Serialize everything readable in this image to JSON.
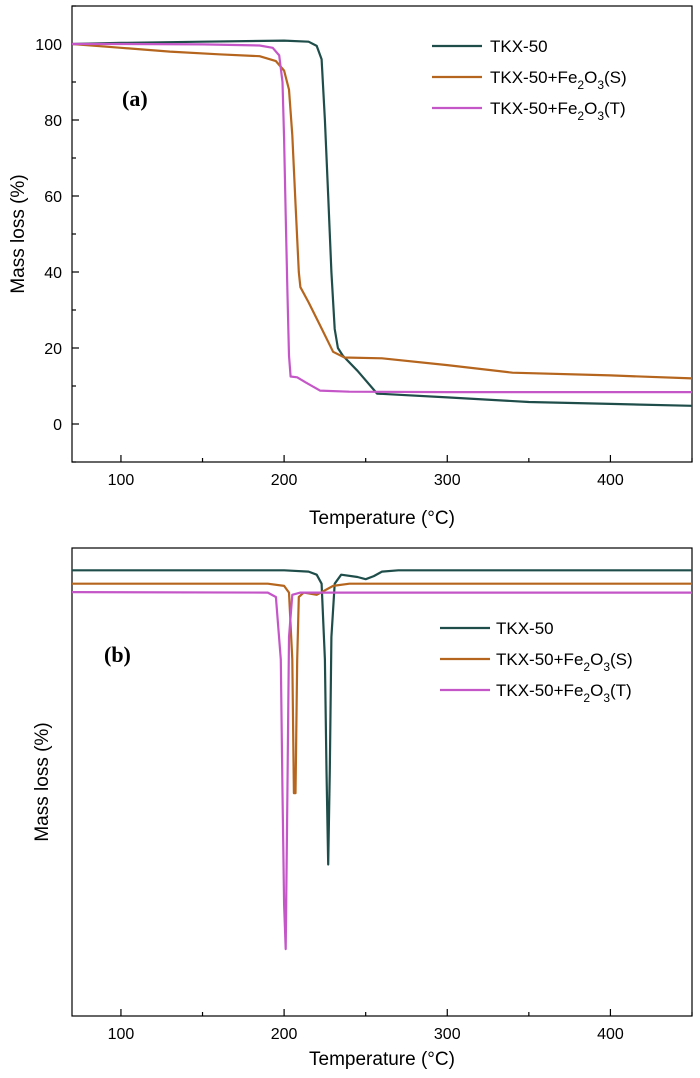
{
  "chart_data": [
    {
      "panel": "(a)",
      "type": "line",
      "xlabel": "Temperature (°C)",
      "ylabel": "Mass loss (%)",
      "xlim": [
        70,
        450
      ],
      "ylim": [
        -10,
        110
      ],
      "xticks": [
        100,
        200,
        300,
        400
      ],
      "xtick_labels": [
        "100",
        "200",
        "300",
        "400"
      ],
      "yticks": [
        0,
        20,
        40,
        60,
        80,
        100
      ],
      "ytick_labels": [
        "0",
        "20",
        "40",
        "60",
        "80",
        "100"
      ],
      "legend_position": "top-right",
      "series": [
        {
          "name": "TKX-50",
          "legend": {
            "base": "TKX-50",
            "sub1": "",
            "mid": "",
            "sub2": "",
            "tail": ""
          },
          "color": "#1f4e4a",
          "points": [
            [
              70,
              100
            ],
            [
              100,
              100.3
            ],
            [
              150,
              100.6
            ],
            [
              200,
              100.9
            ],
            [
              215,
              100.6
            ],
            [
              220,
              99.5
            ],
            [
              223,
              96
            ],
            [
              225,
              80
            ],
            [
              227,
              60
            ],
            [
              229,
              40
            ],
            [
              231,
              25
            ],
            [
              233,
              20
            ],
            [
              236,
              18
            ],
            [
              245,
              14
            ],
            [
              257,
              8
            ],
            [
              300,
              7
            ],
            [
              350,
              5.8
            ],
            [
              400,
              5.3
            ],
            [
              450,
              4.8
            ]
          ]
        },
        {
          "name": "TKX-50+Fe2O3(S)",
          "legend": {
            "base": "TKX-50+Fe",
            "sub1": "2",
            "mid": "O",
            "sub2": "3",
            "tail": "(S)"
          },
          "color": "#b5651d",
          "points": [
            [
              70,
              100
            ],
            [
              100,
              99
            ],
            [
              130,
              98
            ],
            [
              160,
              97.3
            ],
            [
              185,
              96.8
            ],
            [
              195,
              95.5
            ],
            [
              200,
              93
            ],
            [
              203,
              88
            ],
            [
              205,
              76
            ],
            [
              207,
              58
            ],
            [
              209,
              40
            ],
            [
              210,
              36
            ],
            [
              215,
              32
            ],
            [
              222,
              26
            ],
            [
              230,
              19
            ],
            [
              237,
              17.5
            ],
            [
              260,
              17.3
            ],
            [
              300,
              15.5
            ],
            [
              340,
              13.5
            ],
            [
              400,
              12.8
            ],
            [
              450,
              12
            ]
          ]
        },
        {
          "name": "TKX-50+Fe2O3(T)",
          "legend": {
            "base": "TKX-50+Fe",
            "sub1": "2",
            "mid": "O",
            "sub2": "3",
            "tail": "(T)"
          },
          "color": "#c456c8",
          "points": [
            [
              70,
              100
            ],
            [
              100,
              100
            ],
            [
              150,
              99.9
            ],
            [
              185,
              99.6
            ],
            [
              193,
              99
            ],
            [
              197,
              97
            ],
            [
              199,
              90
            ],
            [
              200,
              75
            ],
            [
              201,
              55
            ],
            [
              202,
              35
            ],
            [
              203,
              18
            ],
            [
              204,
              12.5
            ],
            [
              208,
              12.3
            ],
            [
              213,
              11
            ],
            [
              222,
              8.8
            ],
            [
              240,
              8.5
            ],
            [
              300,
              8.4
            ],
            [
              400,
              8.4
            ],
            [
              450,
              8.4
            ]
          ]
        }
      ]
    },
    {
      "panel": "(b)",
      "type": "line",
      "xlabel": "Temperature (°C)",
      "ylabel": "Mass loss (%)",
      "xlim": [
        70,
        450
      ],
      "ylim": [
        -1.0,
        0.05
      ],
      "xticks": [
        100,
        200,
        300,
        400
      ],
      "xtick_labels": [
        "100",
        "200",
        "300",
        "400"
      ],
      "yticks": [],
      "legend_position": "upper-right",
      "series": [
        {
          "name": "TKX-50",
          "legend": {
            "base": "TKX-50",
            "sub1": "",
            "mid": "",
            "sub2": "",
            "tail": ""
          },
          "color": "#1f4e4a",
          "points": [
            [
              70,
              0
            ],
            [
              200,
              0
            ],
            [
              215,
              -0.003
            ],
            [
              220,
              -0.01
            ],
            [
              223,
              -0.03
            ],
            [
              225,
              -0.2
            ],
            [
              226,
              -0.45
            ],
            [
              227,
              -0.66
            ],
            [
              228,
              -0.45
            ],
            [
              229,
              -0.15
            ],
            [
              231,
              -0.03
            ],
            [
              235,
              -0.01
            ],
            [
              245,
              -0.015
            ],
            [
              250,
              -0.02
            ],
            [
              255,
              -0.013
            ],
            [
              260,
              -0.003
            ],
            [
              270,
              0
            ],
            [
              450,
              0
            ]
          ]
        },
        {
          "name": "TKX-50+Fe2O3(S)",
          "legend": {
            "base": "TKX-50+Fe",
            "sub1": "2",
            "mid": "O",
            "sub2": "3",
            "tail": "(S)"
          },
          "color": "#b5651d",
          "points": [
            [
              70,
              -0.03
            ],
            [
              190,
              -0.03
            ],
            [
              200,
              -0.035
            ],
            [
              203,
              -0.05
            ],
            [
              205,
              -0.2
            ],
            [
              206,
              -0.5
            ],
            [
              207,
              -0.5
            ],
            [
              208,
              -0.2
            ],
            [
              209,
              -0.06
            ],
            [
              212,
              -0.05
            ],
            [
              220,
              -0.055
            ],
            [
              230,
              -0.035
            ],
            [
              240,
              -0.03
            ],
            [
              450,
              -0.03
            ]
          ]
        },
        {
          "name": "TKX-50+Fe2O3(T)",
          "legend": {
            "base": "TKX-50+Fe",
            "sub1": "2",
            "mid": "O",
            "sub2": "3",
            "tail": "(T)"
          },
          "color": "#c456c8",
          "points": [
            [
              70,
              -0.049
            ],
            [
              190,
              -0.05
            ],
            [
              195,
              -0.06
            ],
            [
              198,
              -0.2
            ],
            [
              199,
              -0.5
            ],
            [
              200,
              -0.75
            ],
            [
              201,
              -0.85
            ],
            [
              202,
              -0.5
            ],
            [
              203,
              -0.15
            ],
            [
              205,
              -0.055
            ],
            [
              210,
              -0.05
            ],
            [
              450,
              -0.05
            ]
          ]
        }
      ]
    }
  ]
}
